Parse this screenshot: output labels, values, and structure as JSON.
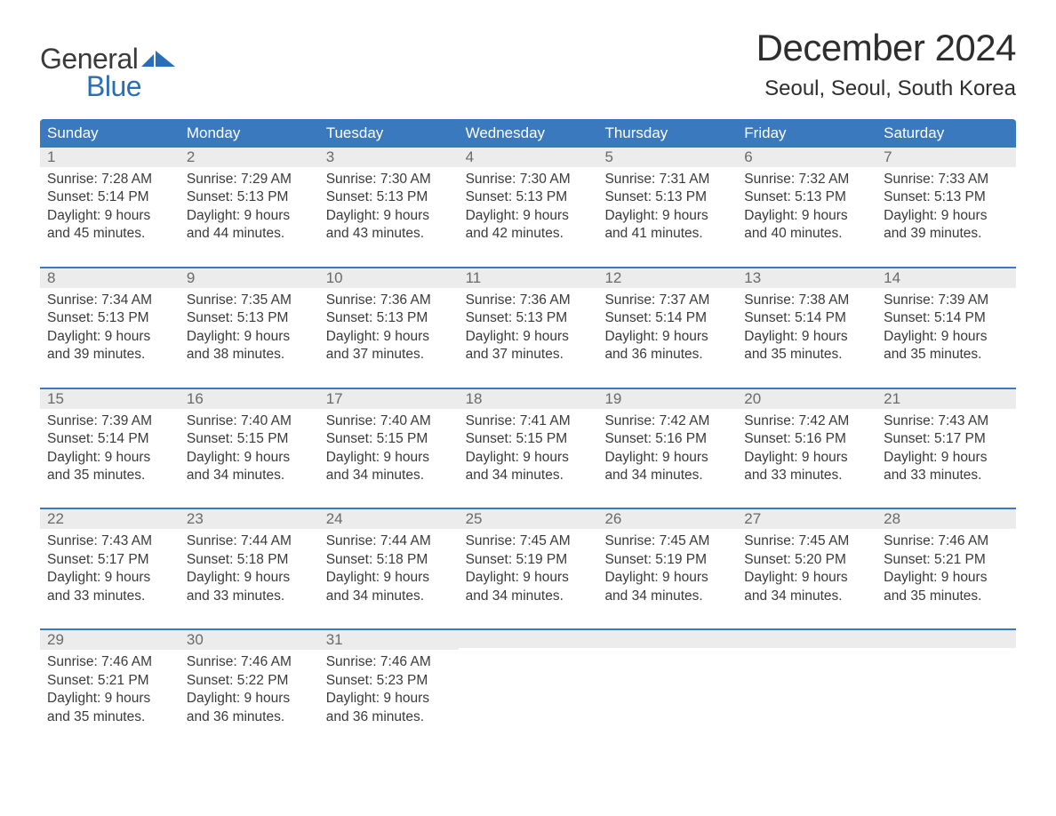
{
  "brand": {
    "text_top": "General",
    "text_bottom": "Blue",
    "icon_color": "#2a6db8",
    "top_color": "#3a3a3a",
    "bottom_color": "#2a6db8"
  },
  "header": {
    "month_title": "December 2024",
    "location": "Seoul, Seoul, South Korea"
  },
  "style": {
    "header_bg": "#3a79bd",
    "header_text": "#ffffff",
    "daynum_bg": "#ececec",
    "daynum_color": "#6a6a6a",
    "body_text": "#3a3a3a",
    "week_border": "#3a79bd",
    "page_bg": "#ffffff",
    "body_font_size": 15.5,
    "header_font_size": 17,
    "title_font_size": 42,
    "location_font_size": 24
  },
  "day_names": [
    "Sunday",
    "Monday",
    "Tuesday",
    "Wednesday",
    "Thursday",
    "Friday",
    "Saturday"
  ],
  "weeks": [
    [
      {
        "n": "1",
        "sunrise": "7:28 AM",
        "sunset": "5:14 PM",
        "dl_h": "9",
        "dl_m": "45"
      },
      {
        "n": "2",
        "sunrise": "7:29 AM",
        "sunset": "5:13 PM",
        "dl_h": "9",
        "dl_m": "44"
      },
      {
        "n": "3",
        "sunrise": "7:30 AM",
        "sunset": "5:13 PM",
        "dl_h": "9",
        "dl_m": "43"
      },
      {
        "n": "4",
        "sunrise": "7:30 AM",
        "sunset": "5:13 PM",
        "dl_h": "9",
        "dl_m": "42"
      },
      {
        "n": "5",
        "sunrise": "7:31 AM",
        "sunset": "5:13 PM",
        "dl_h": "9",
        "dl_m": "41"
      },
      {
        "n": "6",
        "sunrise": "7:32 AM",
        "sunset": "5:13 PM",
        "dl_h": "9",
        "dl_m": "40"
      },
      {
        "n": "7",
        "sunrise": "7:33 AM",
        "sunset": "5:13 PM",
        "dl_h": "9",
        "dl_m": "39"
      }
    ],
    [
      {
        "n": "8",
        "sunrise": "7:34 AM",
        "sunset": "5:13 PM",
        "dl_h": "9",
        "dl_m": "39"
      },
      {
        "n": "9",
        "sunrise": "7:35 AM",
        "sunset": "5:13 PM",
        "dl_h": "9",
        "dl_m": "38"
      },
      {
        "n": "10",
        "sunrise": "7:36 AM",
        "sunset": "5:13 PM",
        "dl_h": "9",
        "dl_m": "37"
      },
      {
        "n": "11",
        "sunrise": "7:36 AM",
        "sunset": "5:13 PM",
        "dl_h": "9",
        "dl_m": "37"
      },
      {
        "n": "12",
        "sunrise": "7:37 AM",
        "sunset": "5:14 PM",
        "dl_h": "9",
        "dl_m": "36"
      },
      {
        "n": "13",
        "sunrise": "7:38 AM",
        "sunset": "5:14 PM",
        "dl_h": "9",
        "dl_m": "35"
      },
      {
        "n": "14",
        "sunrise": "7:39 AM",
        "sunset": "5:14 PM",
        "dl_h": "9",
        "dl_m": "35"
      }
    ],
    [
      {
        "n": "15",
        "sunrise": "7:39 AM",
        "sunset": "5:14 PM",
        "dl_h": "9",
        "dl_m": "35"
      },
      {
        "n": "16",
        "sunrise": "7:40 AM",
        "sunset": "5:15 PM",
        "dl_h": "9",
        "dl_m": "34"
      },
      {
        "n": "17",
        "sunrise": "7:40 AM",
        "sunset": "5:15 PM",
        "dl_h": "9",
        "dl_m": "34"
      },
      {
        "n": "18",
        "sunrise": "7:41 AM",
        "sunset": "5:15 PM",
        "dl_h": "9",
        "dl_m": "34"
      },
      {
        "n": "19",
        "sunrise": "7:42 AM",
        "sunset": "5:16 PM",
        "dl_h": "9",
        "dl_m": "34"
      },
      {
        "n": "20",
        "sunrise": "7:42 AM",
        "sunset": "5:16 PM",
        "dl_h": "9",
        "dl_m": "33"
      },
      {
        "n": "21",
        "sunrise": "7:43 AM",
        "sunset": "5:17 PM",
        "dl_h": "9",
        "dl_m": "33"
      }
    ],
    [
      {
        "n": "22",
        "sunrise": "7:43 AM",
        "sunset": "5:17 PM",
        "dl_h": "9",
        "dl_m": "33"
      },
      {
        "n": "23",
        "sunrise": "7:44 AM",
        "sunset": "5:18 PM",
        "dl_h": "9",
        "dl_m": "33"
      },
      {
        "n": "24",
        "sunrise": "7:44 AM",
        "sunset": "5:18 PM",
        "dl_h": "9",
        "dl_m": "34"
      },
      {
        "n": "25",
        "sunrise": "7:45 AM",
        "sunset": "5:19 PM",
        "dl_h": "9",
        "dl_m": "34"
      },
      {
        "n": "26",
        "sunrise": "7:45 AM",
        "sunset": "5:19 PM",
        "dl_h": "9",
        "dl_m": "34"
      },
      {
        "n": "27",
        "sunrise": "7:45 AM",
        "sunset": "5:20 PM",
        "dl_h": "9",
        "dl_m": "34"
      },
      {
        "n": "28",
        "sunrise": "7:46 AM",
        "sunset": "5:21 PM",
        "dl_h": "9",
        "dl_m": "35"
      }
    ],
    [
      {
        "n": "29",
        "sunrise": "7:46 AM",
        "sunset": "5:21 PM",
        "dl_h": "9",
        "dl_m": "35"
      },
      {
        "n": "30",
        "sunrise": "7:46 AM",
        "sunset": "5:22 PM",
        "dl_h": "9",
        "dl_m": "36"
      },
      {
        "n": "31",
        "sunrise": "7:46 AM",
        "sunset": "5:23 PM",
        "dl_h": "9",
        "dl_m": "36"
      },
      null,
      null,
      null,
      null
    ]
  ],
  "labels": {
    "sunrise_prefix": "Sunrise: ",
    "sunset_prefix": "Sunset: ",
    "daylight_prefix": "Daylight: ",
    "hours_word": " hours",
    "and_word": "and ",
    "minutes_word": " minutes."
  }
}
